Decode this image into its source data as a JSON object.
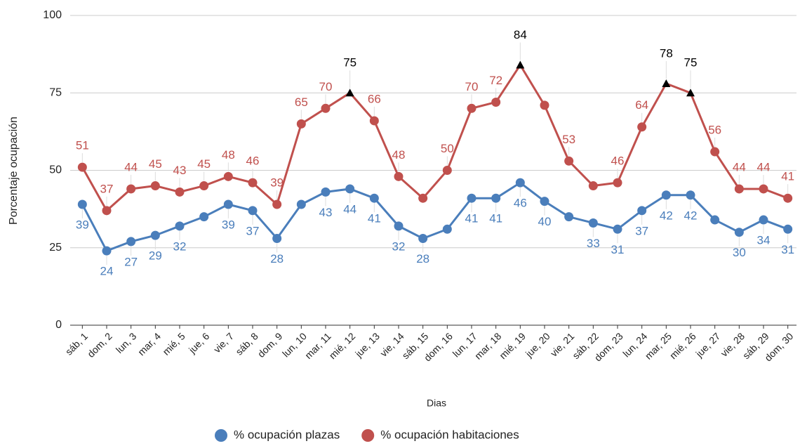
{
  "chart_data": {
    "type": "line",
    "x_label": "Dias",
    "y_label": "Porcentaje ocupación",
    "categories": [
      "sáb, 1",
      "dom, 2",
      "lun, 3",
      "mar, 4",
      "mié, 5",
      "jue, 6",
      "vie, 7",
      "sáb, 8",
      "dom, 9",
      "lun, 10",
      "mar, 11",
      "mié, 12",
      "jue, 13",
      "vie, 14",
      "sáb, 15",
      "dom, 16",
      "lun, 17",
      "mar, 18",
      "mié, 19",
      "jue, 20",
      "vie, 21",
      "sáb, 22",
      "dom, 23",
      "lun, 24",
      "mar, 25",
      "mié, 26",
      "jue, 27",
      "vie, 28",
      "sáb, 29",
      "dom, 30"
    ],
    "series": [
      {
        "name": "% ocupación plazas",
        "color": "#4a7ebb",
        "label_position": "below",
        "values": [
          39,
          24,
          27,
          29,
          32,
          35,
          39,
          37,
          28,
          39,
          43,
          44,
          41,
          32,
          28,
          31,
          41,
          41,
          46,
          40,
          35,
          33,
          31,
          37,
          42,
          42,
          34,
          30,
          34,
          31
        ],
        "value_labels": [
          "39",
          "24",
          "27",
          "29",
          "32",
          null,
          "39",
          "37",
          "28",
          null,
          "43",
          "44",
          "41",
          "32",
          "28",
          null,
          "41",
          "41",
          "46",
          "40",
          null,
          "33",
          "31",
          "37",
          "42",
          "42",
          null,
          "30",
          "34",
          "31"
        ]
      },
      {
        "name": "% ocupación habitaciones",
        "color": "#c0504d",
        "label_position": "above",
        "values": [
          51,
          37,
          44,
          45,
          43,
          45,
          48,
          46,
          39,
          65,
          70,
          75,
          66,
          48,
          41,
          50,
          70,
          72,
          84,
          71,
          53,
          45,
          46,
          64,
          78,
          75,
          56,
          44,
          44,
          41
        ],
        "value_labels": [
          "51",
          "37",
          "44",
          "45",
          "43",
          "45",
          "48",
          "46",
          "39",
          "65",
          "70",
          "75",
          "66",
          "48",
          null,
          "50",
          "70",
          "72",
          "84",
          null,
          "53",
          null,
          "46",
          "64",
          "78",
          "75",
          "56",
          "44",
          "44",
          "41"
        ],
        "highlights": {
          "indices": [
            11,
            18,
            24,
            25
          ],
          "color": "#000000",
          "marker": "triangle"
        }
      }
    ],
    "ylim": [
      0,
      100
    ],
    "yticks": [
      0,
      25,
      50,
      75,
      100
    ],
    "grid": true,
    "legend": "bottom"
  }
}
